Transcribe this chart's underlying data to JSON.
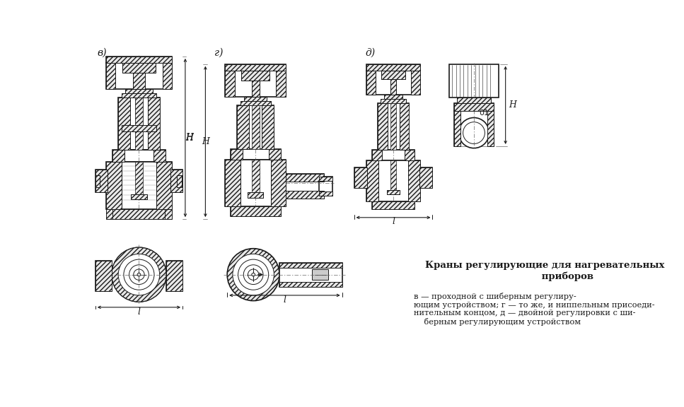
{
  "title": "Краны регулирующие для нагревательных\n            приборов",
  "desc": "в — проходной с шиберным регулиру-\nющим устройством; г — то же, и ниппельным присоеди-\nнительным концом, д — двойной регулировки с ши-\nберным регулирующим устройством",
  "label_v": "в)",
  "label_g": "г)",
  "label_d": "д)",
  "bg": "#ffffff",
  "fg": "#1a1a1a",
  "hatch_dark": "#444444",
  "fig_w": 9.67,
  "fig_h": 5.76,
  "dpi": 100
}
